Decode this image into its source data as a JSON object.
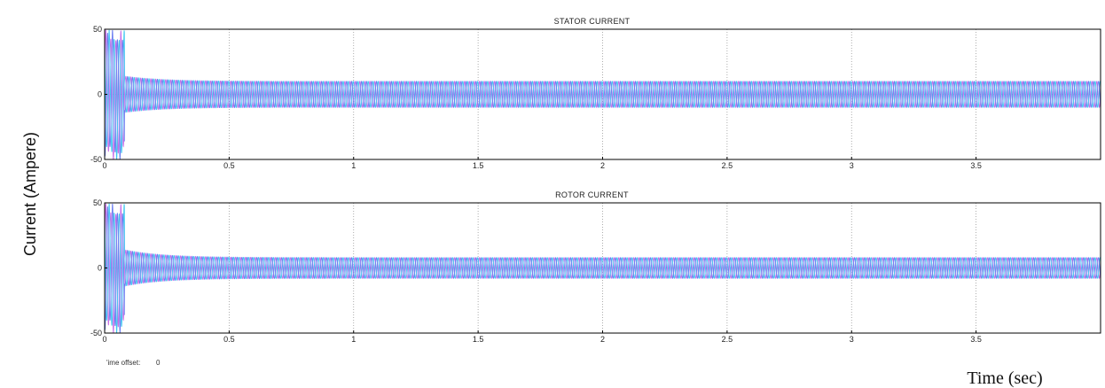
{
  "figure": {
    "ylabel": "Current (Ampere)",
    "xlabel": "Time (sec)",
    "time_offset_label": "'ime offset:",
    "time_offset_value": "0"
  },
  "colors": {
    "background": "#ffffff",
    "axes": "#000000",
    "grid": "#999999",
    "phase_a": "#c86ee8",
    "phase_b": "#3ec8f0",
    "phase_c": "#6a7cf0"
  },
  "chart_data": [
    {
      "type": "line",
      "title": "STATOR CURRENT",
      "xlim": [
        0,
        4
      ],
      "ylim": [
        -50,
        50
      ],
      "xticks": [
        0,
        0.5,
        1,
        1.5,
        2,
        2.5,
        3,
        3.5
      ],
      "xtick_labels": [
        "0",
        "0.5",
        "1",
        "1.5",
        "2",
        "2.5",
        "3",
        "3.5"
      ],
      "yticks": [
        -50,
        0,
        50
      ],
      "ytick_labels": [
        "-50",
        "0",
        "50"
      ],
      "grid": true,
      "series": [
        {
          "color": "#c86ee8",
          "steady_amplitude": 10,
          "start_amplitude": 50,
          "transient_end": 0.08,
          "settle_amplitude": 14
        },
        {
          "color": "#3ec8f0",
          "steady_amplitude": 10,
          "start_amplitude": 50,
          "transient_end": 0.08,
          "settle_amplitude": 14
        },
        {
          "color": "#6a7cf0",
          "steady_amplitude": 10,
          "start_amplitude": 50,
          "transient_end": 0.08,
          "settle_amplitude": 14
        }
      ]
    },
    {
      "type": "line",
      "title": "ROTOR CURRENT",
      "xlim": [
        0,
        4
      ],
      "ylim": [
        -50,
        50
      ],
      "xticks": [
        0,
        0.5,
        1,
        1.5,
        2,
        2.5,
        3,
        3.5
      ],
      "xtick_labels": [
        "0",
        "0.5",
        "1",
        "1.5",
        "2",
        "2.5",
        "3",
        "3.5"
      ],
      "yticks": [
        -50,
        0,
        50
      ],
      "ytick_labels": [
        "-50",
        "0",
        "50"
      ],
      "grid": true,
      "series": [
        {
          "color": "#c86ee8",
          "steady_amplitude": 8,
          "start_amplitude": 50,
          "transient_end": 0.08,
          "settle_amplitude": 14
        },
        {
          "color": "#3ec8f0",
          "steady_amplitude": 8,
          "start_amplitude": 50,
          "transient_end": 0.08,
          "settle_amplitude": 14
        },
        {
          "color": "#6a7cf0",
          "steady_amplitude": 8,
          "start_amplitude": 50,
          "transient_end": 0.08,
          "settle_amplitude": 14
        }
      ]
    }
  ]
}
